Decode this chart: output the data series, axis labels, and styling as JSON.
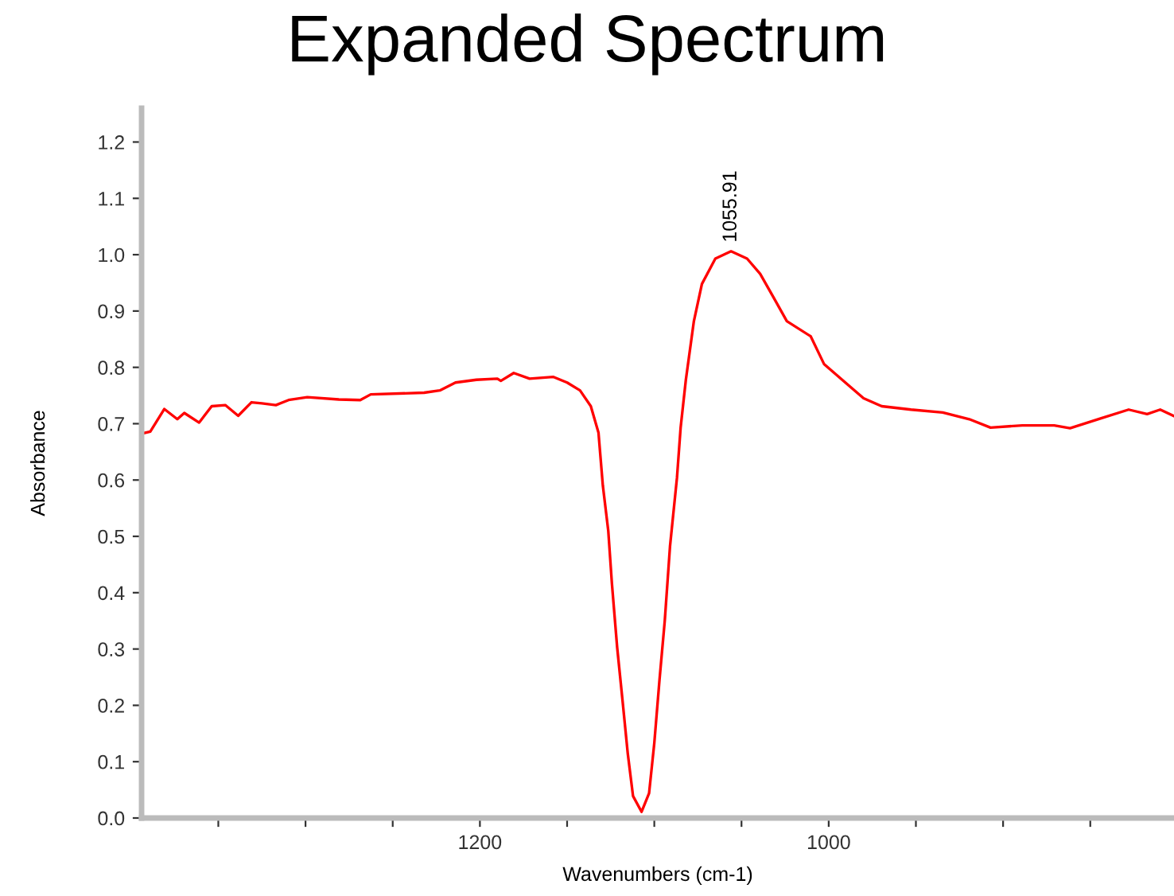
{
  "chart_data": {
    "type": "line",
    "title": "Expanded Spectrum",
    "xlabel": "Wavenumbers (cm-1)",
    "ylabel": "Absorbance",
    "xlim": [
      1394,
      802
    ],
    "ylim": [
      0.0,
      1.26
    ],
    "xticks": [
      {
        "value": 1350,
        "label": null
      },
      {
        "value": 1300,
        "label": null
      },
      {
        "value": 1250,
        "label": null
      },
      1200,
      {
        "value": 1150,
        "label": null
      },
      {
        "value": 1100,
        "label": null
      },
      {
        "value": 1050,
        "label": null
      },
      1000,
      {
        "value": 950,
        "label": null
      },
      {
        "value": 900,
        "label": null
      },
      {
        "value": 850,
        "label": null
      }
    ],
    "yticks": [
      {
        "value": 0,
        "label": "0.0"
      },
      0.1,
      0.2,
      0.3,
      0.4,
      0.5,
      0.6,
      0.7,
      0.8,
      0.9,
      {
        "value": 1,
        "label": "1.0"
      },
      1.1,
      1.2
    ],
    "grid": false,
    "legend": false,
    "marker": "none",
    "line_style": "solid",
    "annotations": [
      {
        "text": "1055.91",
        "x": 1055.91,
        "y": 1.006
      }
    ],
    "series": [
      {
        "color": "#ff0000",
        "x": [
          1393,
          1389,
          1381,
          1373.5,
          1369.5,
          1361,
          1353.8,
          1346,
          1338.6,
          1331,
          1325,
          1317,
          1309.7,
          1299,
          1280.9,
          1268.6,
          1262.6,
          1232,
          1223,
          1214,
          1202,
          1190,
          1188,
          1180.6,
          1171.5,
          1157.8,
          1150,
          1142.6,
          1136.4,
          1132,
          1129.5,
          1126.4,
          1124.3,
          1121.3,
          1118.2,
          1115.2,
          1112.2,
          1107.3,
          1103,
          1100,
          1097,
          1094,
          1091,
          1087,
          1084.9,
          1081.9,
          1077.3,
          1072.7,
          1065,
          1056,
          1046.8,
          1039.3,
          1031.6,
          1024,
          1010.3,
          1002.7,
          989,
          980,
          969.6,
          952.8,
          934.6,
          919.4,
          907.2,
          889,
          870.7,
          861.6,
          843.4,
          828,
          817.4,
          809.9,
          802.3
        ],
        "values": [
          0.683,
          0.686,
          0.726,
          0.708,
          0.719,
          0.702,
          0.731,
          0.733,
          0.714,
          0.738,
          0.736,
          0.733,
          0.742,
          0.747,
          0.743,
          0.742,
          0.752,
          0.755,
          0.759,
          0.773,
          0.778,
          0.78,
          0.776,
          0.79,
          0.78,
          0.783,
          0.773,
          0.759,
          0.731,
          0.684,
          0.59,
          0.51,
          0.416,
          0.303,
          0.208,
          0.114,
          0.039,
          0.011,
          0.044,
          0.133,
          0.246,
          0.35,
          0.482,
          0.604,
          0.693,
          0.778,
          0.882,
          0.948,
          0.993,
          1.006,
          0.993,
          0.966,
          0.924,
          0.882,
          0.855,
          0.806,
          0.769,
          0.745,
          0.731,
          0.725,
          0.72,
          0.708,
          0.693,
          0.697,
          0.697,
          0.692,
          0.71,
          0.725,
          0.717,
          0.725,
          0.714
        ]
      }
    ]
  }
}
